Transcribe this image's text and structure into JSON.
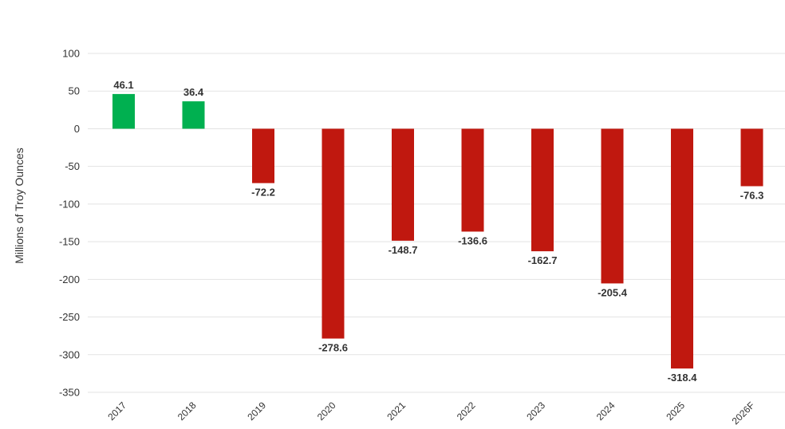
{
  "chart_data": {
    "type": "bar",
    "ylabel": "Millions of Troy Ounces",
    "categories": [
      "2017",
      "2018",
      "2019",
      "2020",
      "2021",
      "2022",
      "2023",
      "2024",
      "2025",
      "2026F"
    ],
    "values": [
      46.1,
      36.4,
      -72.2,
      -278.6,
      -148.7,
      -136.6,
      -162.7,
      -205.4,
      -318.4,
      -76.3
    ],
    "data_labels": [
      "46.1",
      "36.4",
      "-72.2",
      "-278.6",
      "-148.7",
      "-136.6",
      "-162.7",
      "-205.4",
      "-318.4",
      "-76.3"
    ],
    "yticks": [
      100,
      50,
      0,
      -50,
      -100,
      -150,
      -200,
      -250,
      -300,
      -350
    ],
    "ytick_labels": [
      "100",
      "50",
      "0",
      "-50",
      "-100",
      "-150",
      "-200",
      "-250",
      "-300",
      "-350"
    ],
    "ylim": [
      -350,
      100
    ],
    "grid": true,
    "colors": {
      "positive": "#00b050",
      "negative": "#c0180f"
    }
  }
}
